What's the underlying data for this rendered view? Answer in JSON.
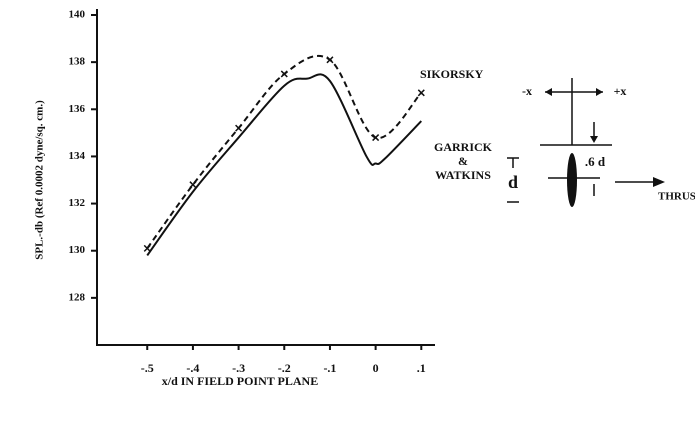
{
  "chart_data": {
    "type": "line",
    "y_label": "SPL.-db (Ref 0.0002 dyne/sq. cm.)",
    "x_label": "x/d IN FIELD POINT PLANE",
    "xlim": [
      -0.61,
      0.13
    ],
    "ylim": [
      126,
      140
    ],
    "xticks": [
      {
        "value": -0.5,
        "label": "-.5"
      },
      {
        "value": -0.4,
        "label": "-.4"
      },
      {
        "value": -0.3,
        "label": "-.3"
      },
      {
        "value": -0.2,
        "label": "-.2"
      },
      {
        "value": -0.1,
        "label": "-.1"
      },
      0,
      {
        "value": 0.1,
        "label": ".1"
      }
    ],
    "yticks": [
      128,
      130,
      132,
      134,
      136,
      138,
      140
    ],
    "series": [
      {
        "name": "SIKORSKY",
        "color": "#111",
        "dashed": true,
        "markers": true,
        "x": [
          -0.5,
          -0.4,
          -0.3,
          -0.2,
          -0.1,
          0,
          0.1
        ],
        "values": [
          130.1,
          132.8,
          135.2,
          137.5,
          138.1,
          134.8,
          136.7
        ]
      },
      {
        "name": "GARRICK & WATKINS",
        "color": "#111",
        "dashed": false,
        "markers": false,
        "x": [
          -0.5,
          -0.4,
          -0.3,
          -0.2,
          -0.15,
          -0.1,
          -0.02,
          0,
          0.02,
          0.1
        ],
        "values": [
          129.8,
          132.5,
          134.8,
          137.0,
          137.3,
          137.2,
          134.0,
          133.7,
          133.9,
          135.5
        ]
      }
    ],
    "annotations": [
      "-x",
      "+x",
      ".6 d",
      "d",
      "THRUST"
    ]
  }
}
